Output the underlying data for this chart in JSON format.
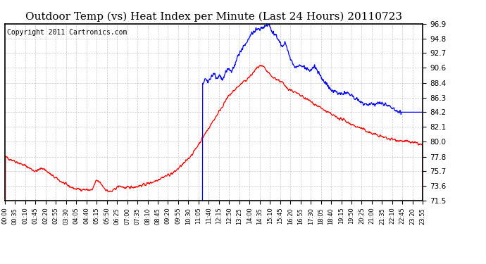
{
  "title": "Outdoor Temp (vs) Heat Index per Minute (Last 24 Hours) 20110723",
  "copyright": "Copyright 2011 Cartronics.com",
  "ylim": [
    71.5,
    96.9
  ],
  "yticks": [
    71.5,
    73.6,
    75.7,
    77.8,
    80.0,
    82.1,
    84.2,
    86.3,
    88.4,
    90.6,
    92.7,
    94.8,
    96.9
  ],
  "xtick_labels": [
    "00:00",
    "00:35",
    "01:10",
    "01:45",
    "02:20",
    "02:55",
    "03:30",
    "04:05",
    "04:40",
    "05:15",
    "05:50",
    "06:25",
    "07:00",
    "07:35",
    "08:10",
    "08:45",
    "09:20",
    "09:55",
    "10:30",
    "11:05",
    "11:40",
    "12:15",
    "12:50",
    "13:25",
    "14:00",
    "14:35",
    "15:10",
    "15:45",
    "16:20",
    "16:55",
    "17:30",
    "18:05",
    "18:40",
    "19:15",
    "19:50",
    "20:25",
    "21:00",
    "21:35",
    "22:10",
    "22:45",
    "23:20",
    "23:55"
  ],
  "temp_color": "#ff0000",
  "heat_color": "#0000ff",
  "bg_color": "#ffffff",
  "grid_color": "#aaaaaa",
  "title_fontsize": 11,
  "copyright_fontsize": 7
}
